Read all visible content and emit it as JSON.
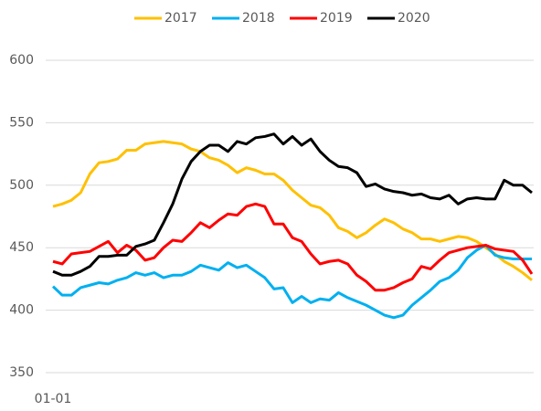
{
  "chart_data": {
    "type": "line",
    "categories": [
      "01-01",
      null,
      null,
      null,
      null,
      null,
      null,
      null,
      null,
      null,
      null,
      null,
      null,
      null,
      null,
      null,
      null,
      null,
      null,
      null,
      null,
      null,
      null,
      null,
      null,
      null,
      null,
      null,
      null,
      null,
      null,
      null,
      null,
      null,
      null,
      null,
      null,
      null,
      null,
      null,
      null,
      null,
      null,
      null,
      null,
      null,
      null,
      null,
      null,
      null,
      null,
      null,
      null
    ],
    "series": [
      {
        "name": "2017",
        "color": "#FFC000",
        "values": [
          483,
          485,
          488,
          494,
          509,
          518,
          519,
          521,
          528,
          528,
          533,
          534,
          535,
          534,
          533,
          529,
          527,
          522,
          520,
          516,
          510,
          514,
          512,
          509,
          509,
          504,
          496,
          490,
          484,
          482,
          476,
          466,
          463,
          458,
          462,
          468,
          473,
          470,
          465,
          462,
          457,
          457,
          455,
          457,
          459,
          458,
          455,
          450,
          445,
          439,
          435,
          430,
          424
        ]
      },
      {
        "name": "2018",
        "color": "#00B0F0",
        "values": [
          419,
          412,
          412,
          418,
          420,
          422,
          421,
          424,
          426,
          430,
          428,
          430,
          426,
          428,
          428,
          431,
          436,
          434,
          432,
          438,
          434,
          436,
          431,
          426,
          417,
          418,
          406,
          411,
          406,
          409,
          408,
          414,
          410,
          407,
          404,
          400,
          396,
          394,
          396,
          404,
          410,
          416,
          423,
          426,
          432,
          442,
          448,
          452,
          444,
          442,
          441,
          441,
          441
        ]
      },
      {
        "name": "2019",
        "color": "#FF0000",
        "values": [
          439,
          437,
          445,
          446,
          447,
          451,
          455,
          446,
          452,
          448,
          440,
          442,
          450,
          456,
          455,
          462,
          470,
          466,
          472,
          477,
          476,
          483,
          485,
          483,
          469,
          469,
          458,
          455,
          445,
          437,
          439,
          440,
          437,
          428,
          423,
          416,
          416,
          418,
          422,
          425,
          435,
          433,
          440,
          446,
          448,
          450,
          451,
          452,
          449,
          448,
          447,
          440,
          429
        ]
      },
      {
        "name": "2020",
        "color": "#000000",
        "values": [
          431,
          428,
          428,
          431,
          435,
          443,
          443,
          444,
          444,
          451,
          453,
          456,
          470,
          485,
          505,
          519,
          527,
          532,
          532,
          527,
          535,
          533,
          538,
          539,
          541,
          533,
          539,
          532,
          537,
          527,
          520,
          515,
          514,
          510,
          499,
          501,
          497,
          495,
          494,
          492,
          493,
          490,
          489,
          492,
          485,
          489,
          490,
          489,
          489,
          504,
          500,
          500,
          494
        ]
      }
    ],
    "ylim": [
      350,
      600
    ],
    "yticks": [
      350,
      400,
      450,
      500,
      550,
      600
    ],
    "grid": true,
    "legend": "top"
  }
}
